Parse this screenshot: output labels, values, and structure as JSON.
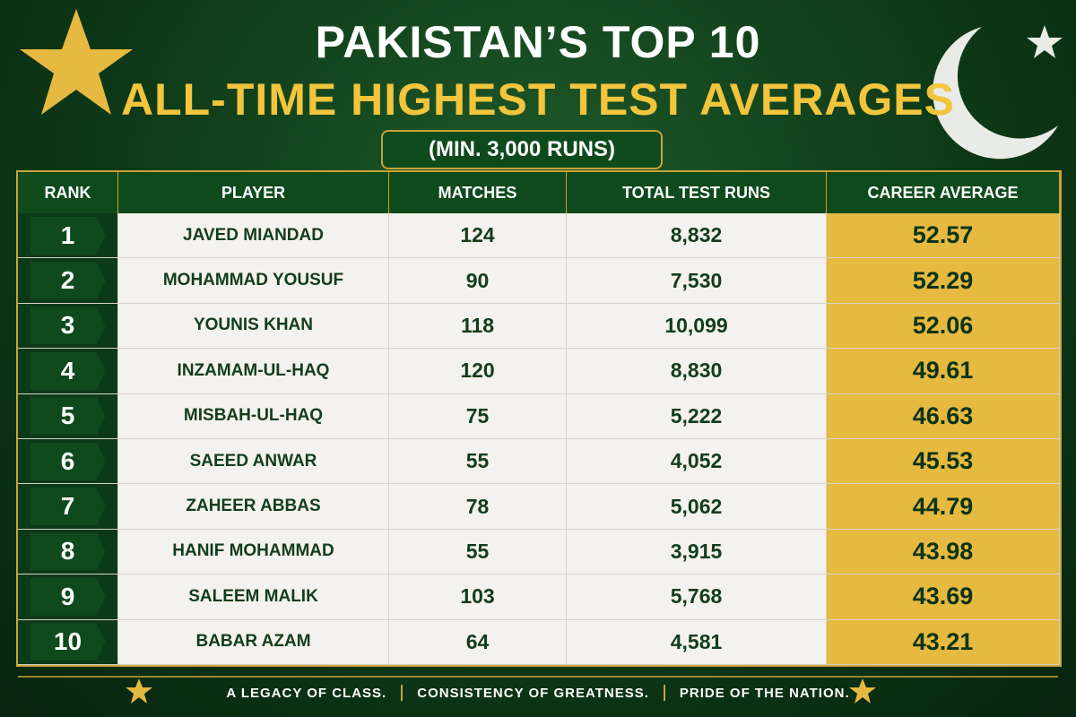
{
  "header": {
    "title_line1": "PAKISTAN’S TOP 10",
    "title_line2": "ALL-TIME HIGHEST TEST AVERAGES",
    "subtitle": "(MIN. 3,000 RUNS)"
  },
  "table": {
    "columns": [
      "RANK",
      "PLAYER",
      "MATCHES",
      "TOTAL TEST RUNS",
      "CAREER AVERAGE"
    ],
    "rows": [
      [
        "1",
        "JAVED MIANDAD",
        "124",
        "8,832",
        "52.57"
      ],
      [
        "2",
        "MOHAMMAD YOUSUF",
        "90",
        "7,530",
        "52.29"
      ],
      [
        "3",
        "YOUNIS KHAN",
        "118",
        "10,099",
        "52.06"
      ],
      [
        "4",
        "INZAMAM-UL-HAQ",
        "120",
        "8,830",
        "49.61"
      ],
      [
        "5",
        "MISBAH-UL-HAQ",
        "75",
        "5,222",
        "46.63"
      ],
      [
        "6",
        "SAEED ANWAR",
        "55",
        "4,052",
        "45.53"
      ],
      [
        "7",
        "ZAHEER ABBAS",
        "78",
        "5,062",
        "44.79"
      ],
      [
        "8",
        "HANIF MOHAMMAD",
        "55",
        "3,915",
        "43.98"
      ],
      [
        "9",
        "SALEEM MALIK",
        "103",
        "5,768",
        "43.69"
      ],
      [
        "10",
        "BABAR AZAM",
        "64",
        "4,581",
        "43.21"
      ]
    ]
  },
  "footer": {
    "items": [
      "A LEGACY OF CLASS.",
      "CONSISTENCY OF GREATNESS.",
      "PRIDE OF THE NATION."
    ]
  }
}
